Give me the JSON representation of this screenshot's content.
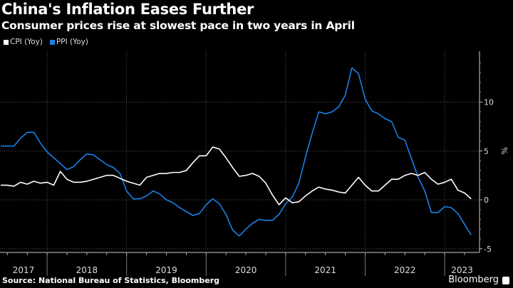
{
  "header": {
    "title": "China's Inflation Eases Further",
    "subtitle": "Consumer prices rise at slowest pace in two years in April"
  },
  "footer": {
    "source": "Source: National Bureau of Statistics, Bloomberg",
    "brand": "Bloomberg"
  },
  "chart_data": {
    "type": "line",
    "title": "China's Inflation Eases Further",
    "ylabel": "%",
    "ylim": [
      -5.5,
      14.8
    ],
    "yticks": [
      -5,
      0,
      5,
      10
    ],
    "ytick_labels": [
      "-5",
      "0",
      "5",
      "10"
    ],
    "y_axis_position": "right",
    "grid": true,
    "legend_position": "top-left",
    "x_start": "2017-05",
    "x_end": "2023-04",
    "xtick_labels": [
      "2017",
      "2018",
      "2019",
      "2020",
      "2021",
      "2022",
      "2023"
    ],
    "series": [
      {
        "name": "CPI (Yoy)",
        "color": "#ffffff",
        "values": [
          1.5,
          1.5,
          1.4,
          1.8,
          1.6,
          1.9,
          1.7,
          1.8,
          1.5,
          2.9,
          2.1,
          1.8,
          1.8,
          1.9,
          2.1,
          2.3,
          2.5,
          2.5,
          2.2,
          1.9,
          1.7,
          1.5,
          2.3,
          2.5,
          2.7,
          2.7,
          2.8,
          2.8,
          3.0,
          3.8,
          4.5,
          4.5,
          5.4,
          5.2,
          4.3,
          3.3,
          2.4,
          2.5,
          2.7,
          2.4,
          1.7,
          0.5,
          -0.5,
          0.2,
          -0.3,
          -0.2,
          0.4,
          0.9,
          1.3,
          1.1,
          1.0,
          0.8,
          0.7,
          1.5,
          2.3,
          1.5,
          0.9,
          0.9,
          1.5,
          2.1,
          2.1,
          2.5,
          2.7,
          2.5,
          2.8,
          2.1,
          1.6,
          1.8,
          2.1,
          1.0,
          0.7,
          0.1
        ]
      },
      {
        "name": "PPI (Yoy)",
        "color": "#1a7fe6",
        "values": [
          5.5,
          5.5,
          5.5,
          6.3,
          6.9,
          6.9,
          5.8,
          4.9,
          4.3,
          3.7,
          3.1,
          3.4,
          4.1,
          4.7,
          4.6,
          4.1,
          3.6,
          3.3,
          2.7,
          0.9,
          0.1,
          0.1,
          0.4,
          0.9,
          0.6,
          0.0,
          -0.3,
          -0.8,
          -1.2,
          -1.6,
          -1.4,
          -0.5,
          0.1,
          -0.4,
          -1.5,
          -3.1,
          -3.7,
          -3.0,
          -2.4,
          -2.0,
          -2.1,
          -2.1,
          -1.5,
          -0.4,
          0.3,
          1.7,
          4.4,
          6.8,
          9.0,
          8.8,
          9.0,
          9.5,
          10.7,
          13.5,
          12.9,
          10.3,
          9.1,
          8.8,
          8.3,
          8.0,
          6.4,
          6.1,
          4.2,
          2.3,
          0.9,
          -1.3,
          -1.3,
          -0.7,
          -0.8,
          -1.4,
          -2.5,
          -3.6
        ]
      }
    ]
  }
}
